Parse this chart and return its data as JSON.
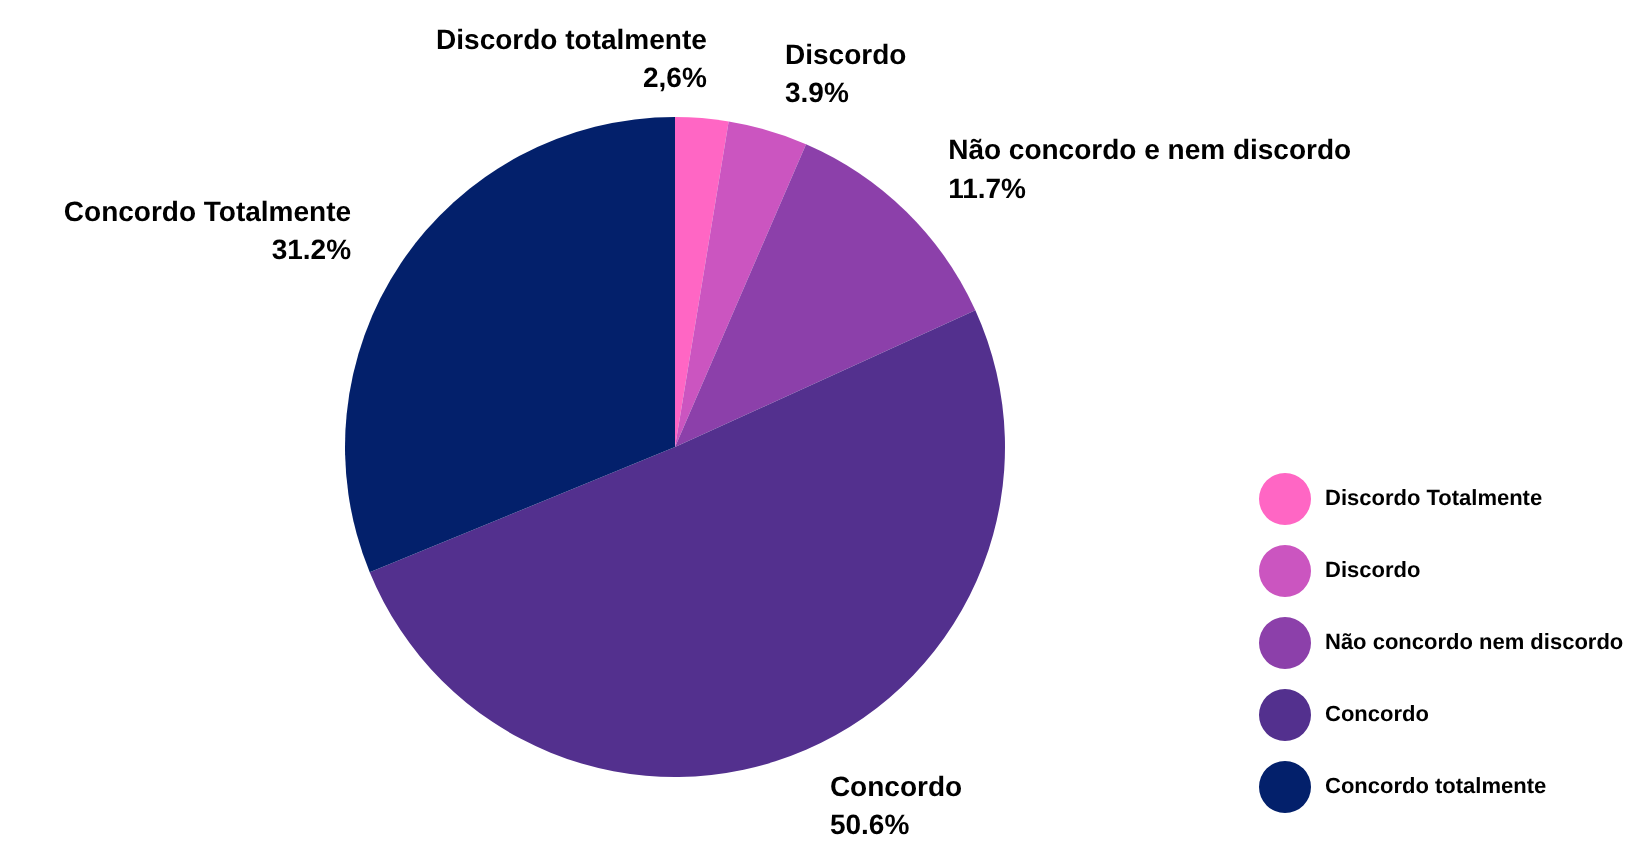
{
  "chart_data": {
    "type": "pie",
    "categories": [
      "Discordo Totalmente",
      "Discordo",
      "Não concordo nem discordo",
      "Concordo",
      "Concordo totalmente"
    ],
    "values": [
      2.6,
      3.9,
      11.7,
      50.6,
      31.2
    ],
    "colors": [
      "#ff66c4",
      "#cb55c0",
      "#8c40aa",
      "#53308e",
      "#03206b"
    ],
    "value_labels": [
      "2,6%",
      "3.9%",
      "11.7%",
      "50.6%",
      "31.2%"
    ],
    "annotations": [
      "Discordo totalmente",
      "Discordo",
      "Não concordo e nem discordo",
      "Concordo",
      "Concordo Totalmente"
    ],
    "legend": "bottom right"
  }
}
